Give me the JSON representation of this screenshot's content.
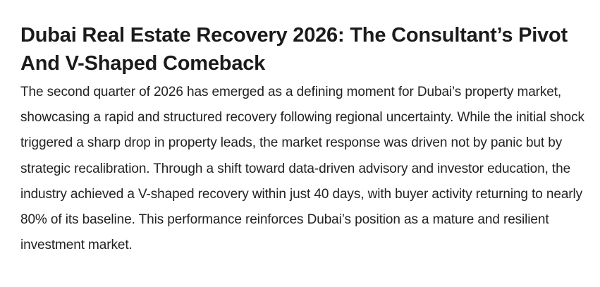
{
  "article": {
    "title": "Dubai Real Estate Recovery 2026: The Consultant’s Pivot And V-Shaped Comeback",
    "paragraph": "The second quarter of 2026 has emerged as a defining moment for Dubai’s property market, showcasing a rapid and structured recovery following regional uncertainty. While the initial shock triggered a sharp drop in property leads, the market response was driven not by panic but by strategic recalibration. Through a shift toward data-driven advisory and investor education, the industry achieved a V-shaped recovery within just 40 days, with buyer activity returning to nearly 80% of its baseline. This performance reinforces Dubai’s position as a mature and resilient investment market."
  }
}
